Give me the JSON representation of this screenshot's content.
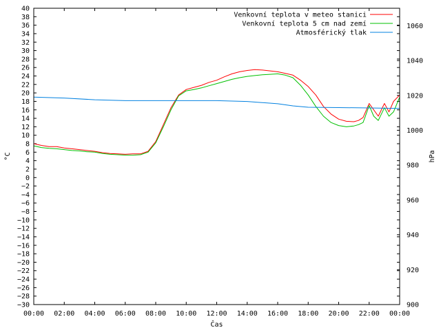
{
  "chart_data": {
    "type": "line",
    "xlabel": "Čas",
    "ylabel_left": "°C",
    "ylabel_right": "hPa",
    "x_ticks": [
      "00:00",
      "02:00",
      "04:00",
      "06:00",
      "08:00",
      "10:00",
      "12:00",
      "14:00",
      "16:00",
      "18:00",
      "20:00",
      "22:00",
      "00:00"
    ],
    "x_range_hours": [
      0,
      24
    ],
    "ylim_left": [
      -30,
      40
    ],
    "y_ticks_left": [
      -30,
      -28,
      -26,
      -24,
      -22,
      -20,
      -18,
      -16,
      -14,
      -12,
      -10,
      -8,
      -6,
      -4,
      -2,
      0,
      2,
      4,
      6,
      8,
      10,
      12,
      14,
      16,
      18,
      20,
      22,
      24,
      26,
      28,
      30,
      32,
      34,
      36,
      38,
      40
    ],
    "ylim_right": [
      900,
      1070
    ],
    "y_ticks_right": [
      900,
      920,
      940,
      960,
      980,
      1000,
      1020,
      1040,
      1060
    ],
    "legend_position": "top-right",
    "series": [
      {
        "name": "Venkovní teplota v meteo stanici",
        "color": "#ff0000",
        "axis": "left",
        "x": [
          0,
          0.5,
          1,
          1.5,
          2,
          2.5,
          3,
          3.5,
          4,
          4.5,
          5,
          5.5,
          6,
          6.5,
          7,
          7.5,
          8,
          8.5,
          9,
          9.5,
          10,
          10.5,
          11,
          11.5,
          12,
          12.5,
          13,
          13.5,
          14,
          14.5,
          15,
          15.5,
          16,
          16.5,
          17,
          17.5,
          18,
          18.5,
          19,
          19.5,
          20,
          20.5,
          21,
          21.3,
          21.6,
          22,
          22.3,
          22.6,
          23,
          23.3,
          23.6,
          24
        ],
        "values": [
          8.0,
          7.6,
          7.3,
          7.3,
          7.0,
          6.8,
          6.6,
          6.4,
          6.2,
          5.9,
          5.7,
          5.6,
          5.5,
          5.6,
          5.6,
          6.2,
          8.5,
          12.5,
          16.5,
          19.5,
          20.8,
          21.3,
          21.8,
          22.5,
          23.0,
          23.8,
          24.5,
          25.0,
          25.3,
          25.5,
          25.4,
          25.2,
          25.0,
          24.6,
          24.2,
          23.0,
          21.5,
          19.5,
          16.8,
          15.0,
          13.8,
          13.3,
          13.2,
          13.5,
          14.2,
          17.5,
          16.0,
          14.5,
          17.5,
          15.5,
          18.0,
          19.5
        ]
      },
      {
        "name": "Venkovní teplota 5 cm nad zemí",
        "color": "#00c000",
        "axis": "left",
        "x": [
          0,
          0.5,
          1,
          1.5,
          2,
          2.5,
          3,
          3.5,
          4,
          4.5,
          5,
          5.5,
          6,
          6.5,
          7,
          7.5,
          8,
          8.5,
          9,
          9.5,
          10,
          10.5,
          11,
          11.5,
          12,
          12.5,
          13,
          13.5,
          14,
          14.5,
          15,
          15.5,
          16,
          16.5,
          17,
          17.5,
          18,
          18.5,
          19,
          19.5,
          20,
          20.5,
          21,
          21.3,
          21.6,
          22,
          22.3,
          22.6,
          23,
          23.3,
          23.6,
          24
        ],
        "values": [
          7.5,
          7.1,
          6.9,
          6.8,
          6.6,
          6.4,
          6.3,
          6.1,
          6.0,
          5.7,
          5.5,
          5.4,
          5.3,
          5.3,
          5.4,
          6.0,
          8.2,
          12.0,
          16.0,
          19.3,
          20.5,
          20.8,
          21.2,
          21.7,
          22.2,
          22.7,
          23.2,
          23.6,
          23.9,
          24.1,
          24.3,
          24.4,
          24.5,
          24.2,
          23.6,
          21.8,
          19.5,
          16.8,
          14.5,
          13.0,
          12.3,
          12.0,
          12.2,
          12.5,
          13.0,
          17.0,
          14.5,
          13.5,
          16.5,
          14.5,
          15.5,
          19.0
        ]
      },
      {
        "name": "Atmosférický tlak",
        "color": "#0080e0",
        "axis": "right",
        "x": [
          0,
          2,
          4,
          6,
          8,
          10,
          12,
          14,
          16,
          17,
          18,
          20,
          22,
          24
        ],
        "values": [
          1019.0,
          1018.5,
          1017.5,
          1017.0,
          1017.0,
          1017.0,
          1017.0,
          1016.5,
          1015.2,
          1014.0,
          1013.2,
          1013.0,
          1012.8,
          1012.5
        ]
      }
    ]
  }
}
